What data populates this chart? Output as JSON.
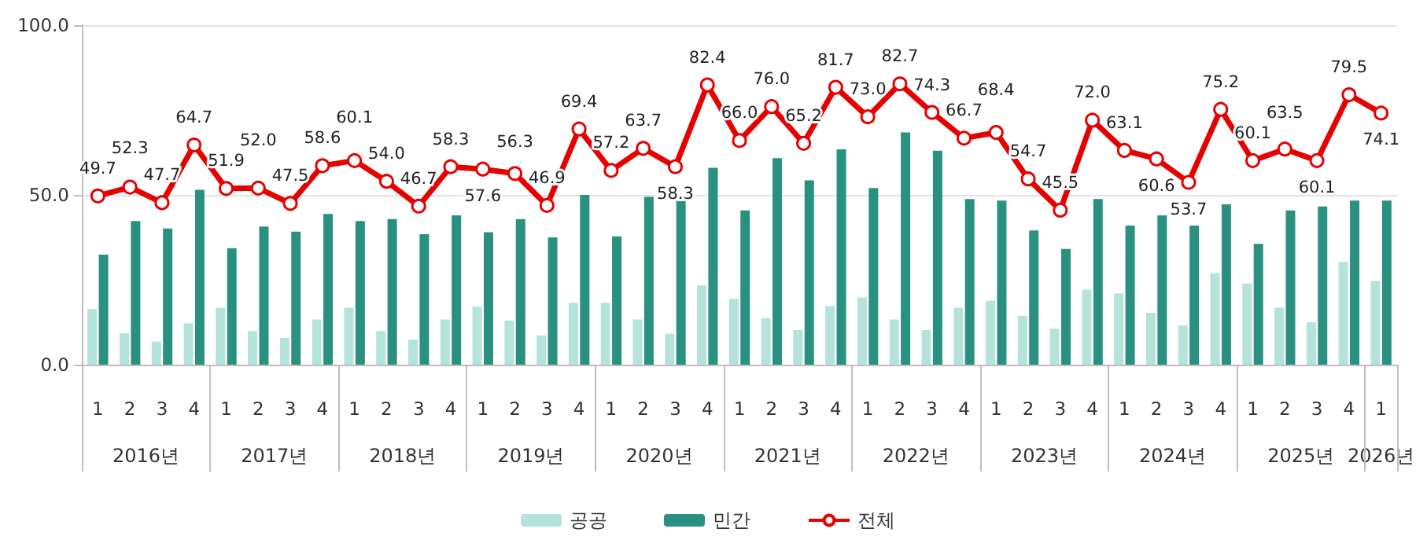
{
  "chart_data": {
    "type": "bar",
    "categories": [
      "1",
      "2",
      "3",
      "4",
      "1",
      "2",
      "3",
      "4",
      "1",
      "2",
      "3",
      "4",
      "1",
      "2",
      "3",
      "4",
      "1",
      "2",
      "3",
      "4",
      "1",
      "2",
      "3",
      "4",
      "1",
      "2",
      "3",
      "4",
      "1",
      "2",
      "3",
      "4",
      "1",
      "2",
      "3",
      "4",
      "1",
      "2",
      "3",
      "4",
      "1"
    ],
    "series": [
      {
        "name": "공공",
        "color": "#b3e3da",
        "values": [
          16.4,
          9.3,
          6.8,
          12.2,
          16.7,
          9.9,
          7.9,
          13.3,
          16.7,
          9.9,
          7.4,
          13.3,
          17.1,
          13.0,
          8.6,
          18.2,
          18.2,
          13.3,
          9.1,
          23.3,
          19.4,
          13.7,
          10.2,
          17.3,
          19.8,
          13.3,
          10.2,
          16.8,
          18.8,
          14.4,
          10.6,
          22.1,
          21.0,
          15.3,
          11.6,
          26.9,
          23.9,
          16.8,
          12.5,
          30.2,
          24.7
        ]
      },
      {
        "name": "민간",
        "color": "#2a9080",
        "values": [
          32.4,
          42.3,
          40.1,
          51.5,
          34.3,
          40.7,
          39.2,
          44.4,
          42.3,
          42.9,
          38.4,
          44.0,
          39.0,
          42.9,
          37.5,
          50.0,
          37.8,
          49.4,
          48.3,
          58.0,
          45.4,
          60.8,
          54.3,
          63.4,
          52.0,
          68.4,
          63.0,
          48.8,
          48.3,
          39.5,
          34.1,
          48.8,
          41.0,
          44.0,
          41.0,
          47.2,
          35.6,
          45.4,
          46.6,
          48.3,
          48.3
        ]
      },
      {
        "name": "전체",
        "type": "line",
        "color": "#e60000",
        "marker": "circle",
        "values": [
          49.7,
          52.3,
          47.7,
          64.7,
          51.9,
          52.0,
          47.5,
          58.6,
          60.1,
          54.0,
          46.7,
          58.3,
          57.6,
          56.3,
          46.9,
          69.4,
          57.2,
          63.7,
          58.3,
          82.4,
          66.0,
          76.0,
          65.2,
          81.7,
          73.0,
          82.7,
          74.3,
          66.7,
          68.4,
          54.7,
          45.5,
          72.0,
          63.1,
          60.6,
          53.7,
          75.2,
          60.1,
          63.5,
          60.1,
          79.5,
          74.1
        ],
        "value_labels": [
          "49.7",
          "52.3",
          "47.7",
          "64.7",
          "51.9",
          "52.0",
          "47.5",
          "58.6",
          "60.1",
          "54.0",
          "46.7",
          "58.3",
          "57.6",
          "56.3",
          "46.9",
          "69.4",
          "57.2",
          "63.7",
          "58.3",
          "82.4",
          "66.0",
          "76.0",
          "65.2",
          "81.7",
          "73.0",
          "82.7",
          "74.3",
          "66.7",
          "68.4",
          "54.7",
          "45.5",
          "72.0",
          "63.1",
          "60.6",
          "53.7",
          "75.2",
          "60.1",
          "63.5",
          "60.1",
          "79.5",
          "74.1"
        ]
      }
    ],
    "ylim": [
      0,
      100
    ],
    "yticks": [
      {
        "value": 0,
        "label": "0.0"
      },
      {
        "value": 50,
        "label": "50.0"
      },
      {
        "value": 100,
        "label": "100.0"
      }
    ],
    "grid": "y",
    "legend": "bottom",
    "annotations": [
      "2016년",
      "2017년",
      "2018년",
      "2019년",
      "2020년",
      "2021년",
      "2022년",
      "2023년",
      "2024년",
      "2025년",
      "2026년"
    ]
  }
}
